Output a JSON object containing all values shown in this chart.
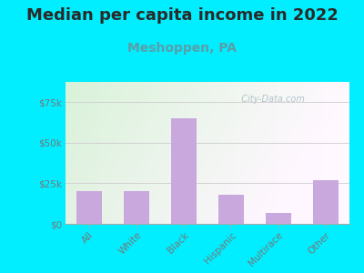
{
  "title": "Median per capita income in 2022",
  "subtitle": "Meshoppen, PA",
  "categories": [
    "All",
    "White",
    "Black",
    "Hispanic",
    "Multirace",
    "Other"
  ],
  "values": [
    20000,
    20000,
    65000,
    18000,
    7000,
    27000
  ],
  "bar_color": "#c9a8de",
  "background_color": "#00eeff",
  "title_color": "#2a2a2a",
  "subtitle_color": "#5a9ea8",
  "tick_label_color": "#777777",
  "ylim": [
    0,
    87500
  ],
  "yticks": [
    0,
    25000,
    50000,
    75000
  ],
  "ytick_labels": [
    "$0",
    "$25k",
    "$50k",
    "$75k"
  ],
  "watermark": "  City-Data.com",
  "title_fontsize": 13,
  "subtitle_fontsize": 10,
  "plot_bg_colors": [
    "#dff0e0",
    "#f5fff5",
    "#ffffff",
    "#ffffff"
  ]
}
